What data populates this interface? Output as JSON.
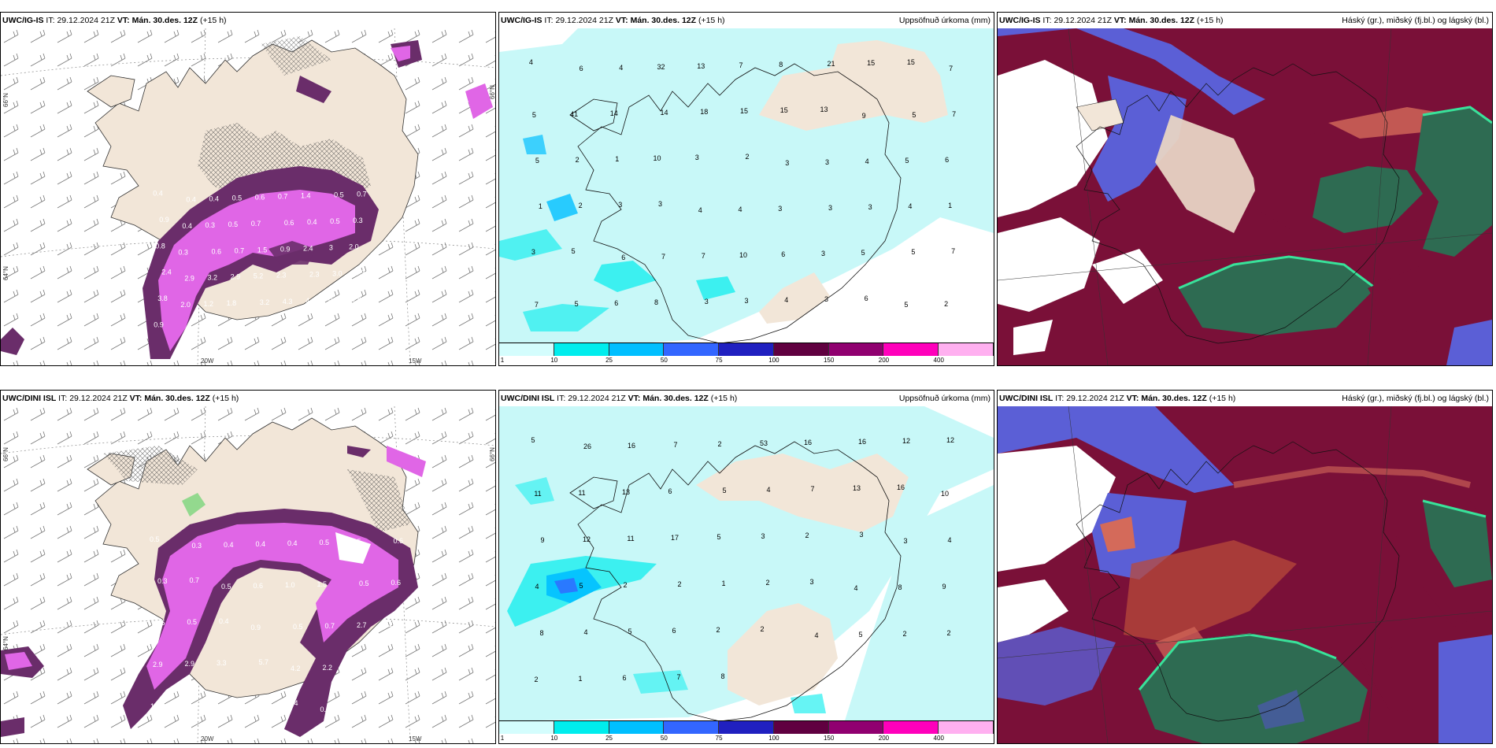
{
  "panels": {
    "p1": {
      "model": "UWC/IG-IS",
      "it_label": "IT:",
      "it_value": "29.12.2024 21Z",
      "vt_label": "VT:",
      "vt_value": "Mán. 30.des. 12Z",
      "lead": "(+15 h)",
      "lat_top": "66°N",
      "lat_mid": "64°N",
      "lon_left": "20W",
      "lon_right": "15W",
      "lat_right": "66°N",
      "values": [
        "0.4",
        "0.4",
        "0.4",
        "0.5",
        "0.6",
        "0.7",
        "1.4",
        "0.5",
        "0.7",
        "0.9",
        "0.4",
        "0.3",
        "0.5",
        "0.7",
        "0.6",
        "0.4",
        "0.5",
        "0.3",
        "0.8",
        "0.3",
        "0.6",
        "0.7",
        "1.5",
        "0.9",
        "2.4",
        "3",
        "2.0",
        "2.4",
        "2.9",
        "3.2",
        "2.9",
        "5.2",
        "2.3",
        "2.3",
        "3.0",
        "4.3",
        "3.8",
        "2.0",
        "1.2",
        "1.8",
        "3.2",
        "4.3",
        "4.3",
        "0.5",
        "0.8",
        "0.9"
      ]
    },
    "p2": {
      "model": "UWC/IG-IS",
      "it_label": "IT:",
      "it_value": "29.12.2024 21Z",
      "vt_label": "VT:",
      "vt_value": "Mán. 30.des. 12Z",
      "lead": "(+15 h)",
      "title": "Uppsöfnuð úrkoma (mm)",
      "values": [
        "4",
        "6",
        "4",
        "32",
        "13",
        "7",
        "8",
        "21",
        "15",
        "15",
        "7",
        "5",
        "41",
        "14",
        "14",
        "18",
        "15",
        "15",
        "13",
        "9",
        "5",
        "7",
        "5",
        "2",
        "1",
        "10",
        "3",
        "2",
        "3",
        "3",
        "4",
        "5",
        "6",
        "1",
        "2",
        "3",
        "3",
        "4",
        "4",
        "3",
        "3",
        "3",
        "4",
        "1",
        "3",
        "5",
        "6",
        "7",
        "7",
        "10",
        "6",
        "3",
        "5",
        "5",
        "7",
        "7",
        "5",
        "6",
        "8",
        "3",
        "3",
        "4",
        "3",
        "6",
        "5",
        "2"
      ]
    },
    "p3": {
      "model": "UWC/IG-IS",
      "it_label": "IT:",
      "it_value": "29.12.2024 21Z",
      "vt_label": "VT:",
      "vt_value": "Mán. 30.des. 12Z",
      "lead": "(+15 h)",
      "title": "Háský (gr.), miðský (fj.bl.) og lágský (bl.)"
    },
    "p4": {
      "model": "UWC/DINI ISL",
      "it_label": "IT:",
      "it_value": "29.12.2024 21Z",
      "vt_label": "VT:",
      "vt_value": "Mán. 30.des. 12Z",
      "lead": "(+15 h)",
      "lat_top": "66°N",
      "lat_mid": "64°N",
      "lon_left": "20W",
      "lon_right": "15W",
      "lat_right": "66°N",
      "values": [
        "0.5",
        "0.3",
        "0.4",
        "0.4",
        "0.4",
        "0.5",
        "0.5",
        "0.6",
        "0.3",
        "0.7",
        "0.5",
        "0.6",
        "1.0",
        "1.5",
        "0.5",
        "0.6",
        "0.5",
        "0.5",
        "0.4",
        "0.9",
        "0.5",
        "0.7",
        "2.7",
        "2.3",
        "2.9",
        "2.9",
        "3.3",
        "5.7",
        "4.2",
        "2.2",
        "1.1",
        "2.6",
        "1.7",
        "1.6",
        "0.6",
        "0.3",
        "2.4",
        "0.3",
        "2"
      ]
    },
    "p5": {
      "model": "UWC/DINI ISL",
      "it_label": "IT:",
      "it_value": "29.12.2024 21Z",
      "vt_label": "VT:",
      "vt_value": "Mán. 30.des. 12Z",
      "lead": "(+15 h)",
      "title": "Uppsöfnuð úrkoma (mm)",
      "values": [
        "5",
        "26",
        "16",
        "7",
        "2",
        "53",
        "16",
        "16",
        "12",
        "12",
        "11",
        "11",
        "13",
        "6",
        "5",
        "4",
        "7",
        "13",
        "16",
        "10",
        "9",
        "12",
        "11",
        "17",
        "5",
        "3",
        "2",
        "3",
        "3",
        "4",
        "4",
        "5",
        "2",
        "2",
        "1",
        "2",
        "3",
        "4",
        "8",
        "9",
        "8",
        "4",
        "5",
        "6",
        "2",
        "2",
        "4",
        "5",
        "2",
        "2",
        "2",
        "1",
        "6",
        "7",
        "8"
      ]
    },
    "p6": {
      "model": "UWC/DINI ISL",
      "it_label": "IT:",
      "it_value": "29.12.2024 21Z",
      "vt_label": "VT:",
      "vt_value": "Mán. 30.des. 12Z",
      "lead": "(+15 h)",
      "title": "Háský (gr.), miðský (fj.bl.) og lágský (bl.)"
    }
  },
  "precip_colorbar": {
    "labels": [
      "1",
      "10",
      "25",
      "50",
      "75",
      "100",
      "150",
      "200",
      "400"
    ],
    "colors": [
      "#d4fdfd",
      "#00eded",
      "#00bfff",
      "#3366ff",
      "#2020c0",
      "#600040",
      "#900070",
      "#ff00bb",
      "#ffb0f0"
    ]
  },
  "colors": {
    "land": "#f2e6d8",
    "precip_light": "#c8f8f8",
    "snow_purple": "#e066e6",
    "snow_dark": "#6a2d6a",
    "cloud_high": "#2e6b52",
    "cloud_mid": "#7a1038",
    "cloud_low": "#5b5fd6"
  }
}
